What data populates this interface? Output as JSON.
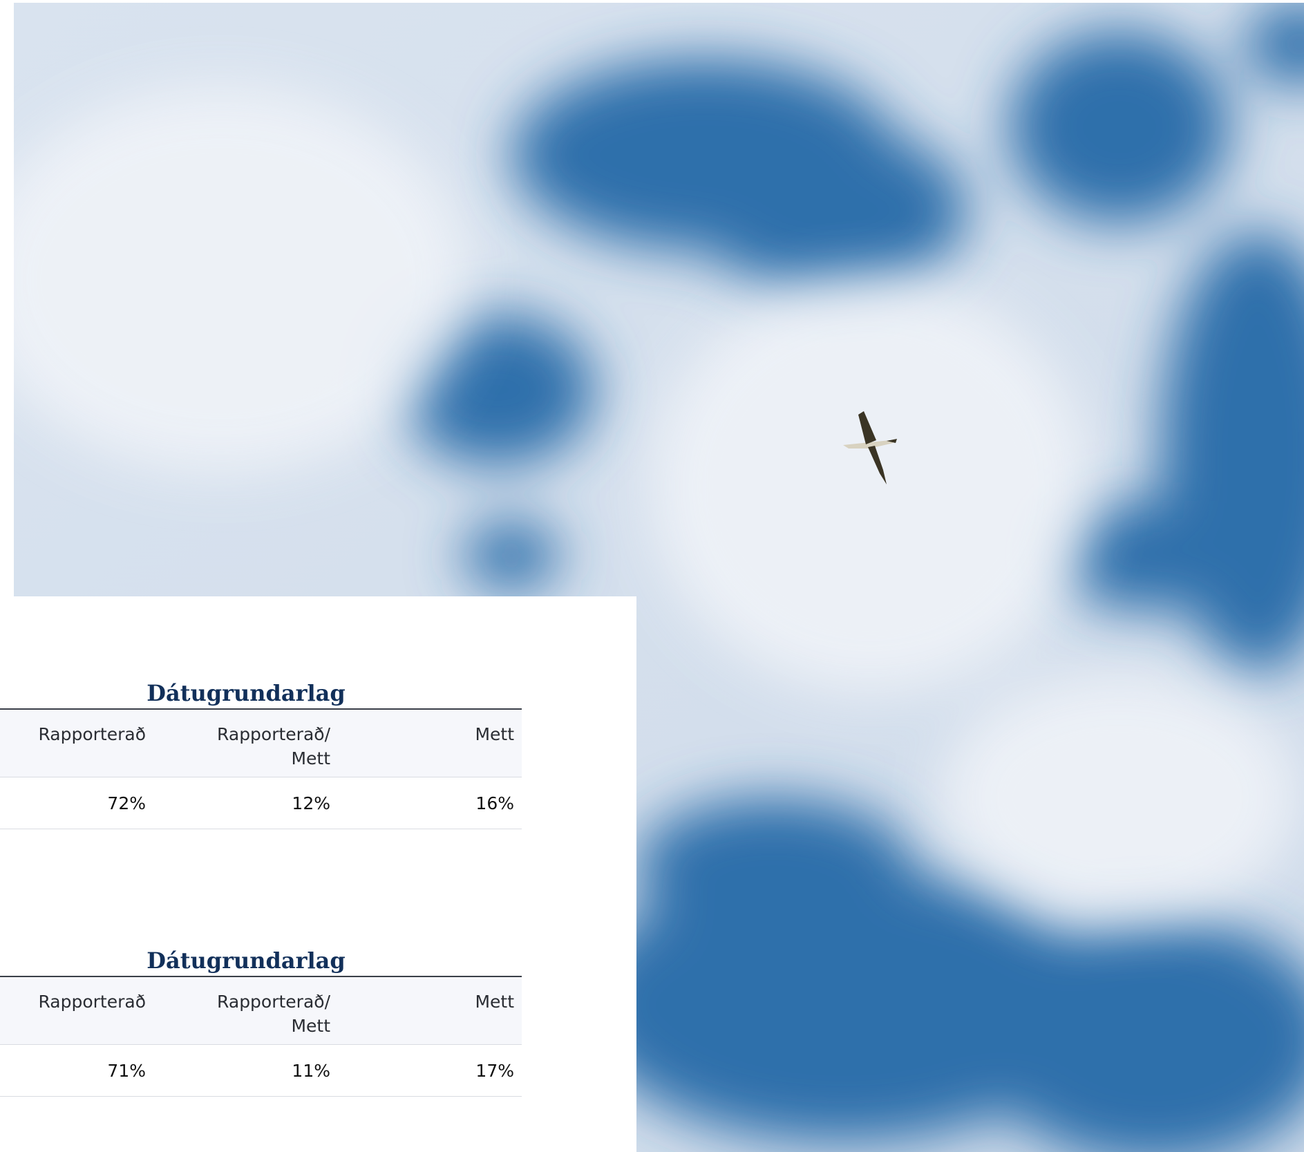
{
  "tables": [
    {
      "title": "Dátugrundarlag",
      "header": [
        "Rapporterað",
        "Rapporterað/ Mett",
        "Mett"
      ],
      "rows": [
        [
          "72%",
          "12%",
          "16%"
        ]
      ]
    },
    {
      "title": "Dátugrundarlag",
      "header": [
        "Rapporterað",
        "Rapporterað/ Mett",
        "Mett"
      ],
      "rows": [
        [
          "71%",
          "11%",
          "17%"
        ]
      ]
    }
  ]
}
